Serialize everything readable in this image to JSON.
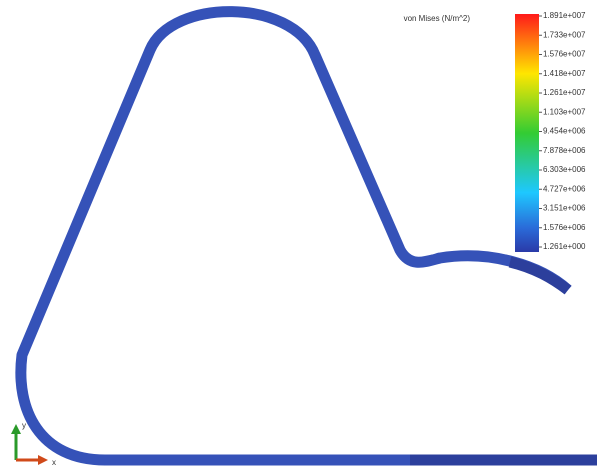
{
  "legend": {
    "title": "von Mises (N/m^2)",
    "labels": [
      "1.891e+007",
      "1.733e+007",
      "1.576e+007",
      "1.418e+007",
      "1.261e+007",
      "1.103e+007",
      "9.454e+006",
      "7.878e+006",
      "6.303e+006",
      "4.727e+006",
      "3.151e+006",
      "1.576e+006",
      "1.261e+000"
    ]
  },
  "triad": {
    "x": "x",
    "y": "y"
  }
}
